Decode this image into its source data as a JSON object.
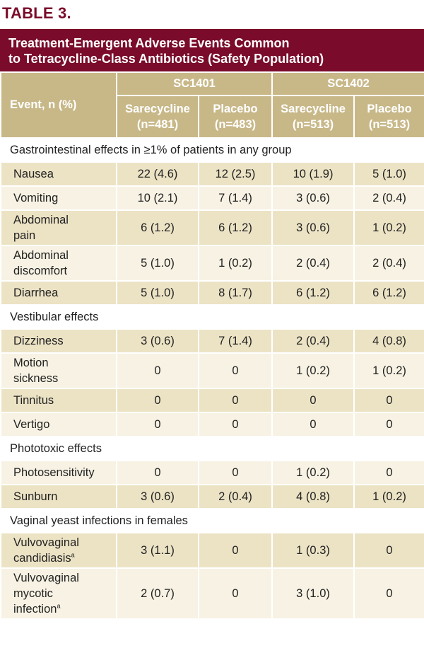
{
  "table_label": "TABLE 3.",
  "title_line1": "Treatment-Emergent Adverse Events Common",
  "title_line2": "to Tetracycline-Class Antibiotics (Safety Population)",
  "header": {
    "event_col": "Event, n (%)",
    "study1": "SC1401",
    "study2": "SC1402",
    "sare1": "Sarecycline",
    "sare1_n": "(n=481)",
    "plac1": "Placebo",
    "plac1_n": "(n=483)",
    "sare2": "Sarecycline",
    "sare2_n": "(n=513)",
    "plac2": "Placebo",
    "plac2_n": "(n=513)"
  },
  "sections": {
    "gi": "Gastrointestinal effects in ≥1% of patients in any group",
    "vest": "Vestibular effects",
    "photo": "Phototoxic effects",
    "yeast": "Vaginal yeast infections in females"
  },
  "rows": [
    {
      "l1": "Nausea",
      "l2": "",
      "l3": "",
      "v": [
        "22 (4.6)",
        "12 (2.5)",
        "10 (1.9)",
        "5 (1.0)"
      ]
    },
    {
      "l1": "Vomiting",
      "l2": "",
      "l3": "",
      "v": [
        "10 (2.1)",
        "7 (1.4)",
        "3 (0.6)",
        "2 (0.4)"
      ]
    },
    {
      "l1": "Abdominal",
      "l2": "pain",
      "l3": "",
      "v": [
        "6 (1.2)",
        "6 (1.2)",
        "3 (0.6)",
        "1 (0.2)"
      ]
    },
    {
      "l1": "Abdominal",
      "l2": "discomfort",
      "l3": "",
      "v": [
        "5 (1.0)",
        "1 (0.2)",
        "2 (0.4)",
        "2 (0.4)"
      ]
    },
    {
      "l1": "Diarrhea",
      "l2": "",
      "l3": "",
      "v": [
        "5 (1.0)",
        "8 (1.7)",
        "6 (1.2)",
        "6 (1.2)"
      ]
    },
    {
      "l1": "Dizziness",
      "l2": "",
      "l3": "",
      "v": [
        "3 (0.6)",
        "7 (1.4)",
        "2 (0.4)",
        "4 (0.8)"
      ]
    },
    {
      "l1": "Motion",
      "l2": "sickness",
      "l3": "",
      "v": [
        "0",
        "0",
        "1 (0.2)",
        "1 (0.2)"
      ]
    },
    {
      "l1": "Tinnitus",
      "l2": "",
      "l3": "",
      "v": [
        "0",
        "0",
        "0",
        "0"
      ]
    },
    {
      "l1": "Vertigo",
      "l2": "",
      "l3": "",
      "v": [
        "0",
        "0",
        "0",
        "0"
      ]
    },
    {
      "l1": "Photosensitivity",
      "l2": "",
      "l3": "",
      "v": [
        "0",
        "0",
        "1 (0.2)",
        "0"
      ]
    },
    {
      "l1": "Sunburn",
      "l2": "",
      "l3": "",
      "v": [
        "3 (0.6)",
        "2 (0.4)",
        "4 (0.8)",
        "1 (0.2)"
      ]
    },
    {
      "l1": "Vulvovaginal",
      "l2": "candidiasis",
      "l3": "",
      "sup": "a",
      "v": [
        "3 (1.1)",
        "0",
        "1 (0.3)",
        "0"
      ]
    },
    {
      "l1": "Vulvovaginal",
      "l2": "mycotic",
      "l3": "infection",
      "sup": "a",
      "v": [
        "2 (0.7)",
        "0",
        "3 (1.0)",
        "0"
      ]
    }
  ]
}
